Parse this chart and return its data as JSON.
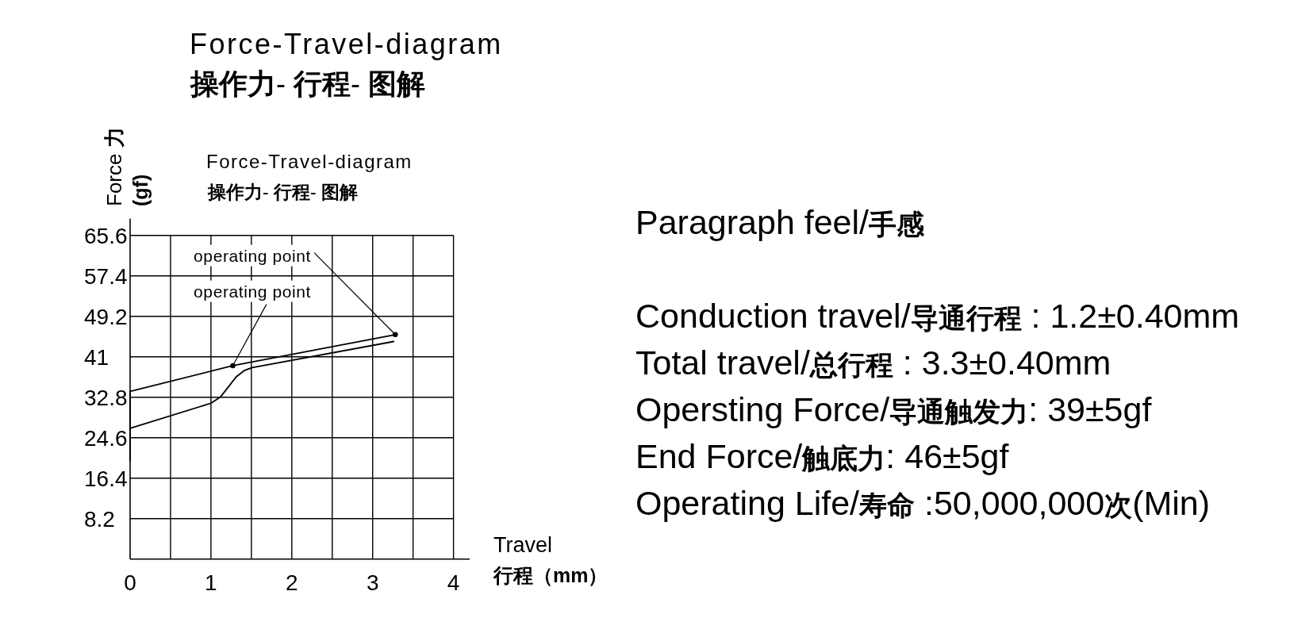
{
  "chart_data": {
    "type": "line",
    "title": "Force-Travel-diagram",
    "subtitle": "操作力- 行程- 图解",
    "xlabel": "Travel\n行程（mm）",
    "ylabel": "Force 力\n(gf)",
    "series": [
      {
        "color": "#000000",
        "x": [
          0,
          0,
          1.27,
          3.28
        ],
        "values": [
          20,
          34,
          39.2,
          45.5
        ]
      },
      {
        "color": "#000000",
        "x": [
          0,
          1.0,
          1.12,
          1.22,
          1.31,
          1.41,
          1.51,
          3.26
        ],
        "values": [
          26.5,
          31.6,
          32.9,
          35.0,
          36.9,
          38.2,
          38.8,
          44.1
        ]
      }
    ],
    "xlim": [
      0,
      4.2
    ],
    "ylim": [
      0,
      69
    ],
    "xticks": [
      0,
      {
        "value": 0.5,
        "label": null
      },
      1,
      {
        "value": 1.5,
        "label": null
      },
      2,
      {
        "value": 2.5,
        "label": null
      },
      3,
      {
        "value": 3.5,
        "label": null
      },
      4
    ],
    "yticks": [
      8.2,
      16.4,
      24.6,
      32.8,
      41,
      49.2,
      57.4,
      65.6
    ],
    "grid": true,
    "line_style": "solid",
    "annotations": [
      {
        "text": "operating point",
        "x": 3.28,
        "y": 45.5
      },
      {
        "text": "operating point",
        "x": 1.27,
        "y": 39.2
      },
      "Force-Travel-diagram",
      "操作力- 行程- 图解",
      "Paragraph feel/手感",
      "Conduction travel/导通行程 : 1.2±0.40mm",
      "Total travel/总行程 : 3.3±0.40mm",
      "Opersting Force/导通触发力: 39±5gf",
      "End Force/触底力: 46±5gf",
      "Operating Life/寿命 :50,000,000次(Min)"
    ]
  }
}
